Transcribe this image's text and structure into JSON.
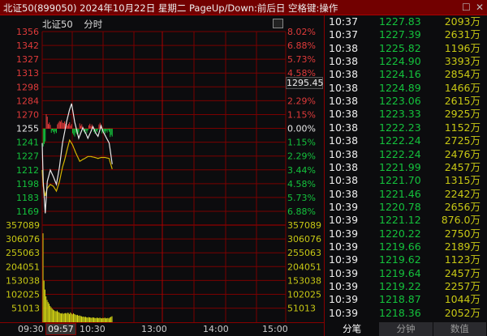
{
  "window": {
    "title": "北证50(899050) 2024年10月22日 星期二 PageUp/Down:前后日 空格键:操作",
    "restore_icon": "square-icon",
    "close_icon": "x-icon"
  },
  "chart_header": {
    "name": "北证50",
    "mode": "分时"
  },
  "current_price_tag": "1295.45",
  "colors": {
    "up": "#e03a3a",
    "down": "#14c23c",
    "avg": "#d4b400",
    "price": "#e8e8e8",
    "volume": "#d8d814",
    "grid": "#7a0000",
    "title_bg": "#720000"
  },
  "chart_data": {
    "type": "line",
    "price_axis": {
      "ticks": [
        "1356",
        "1342",
        "1327",
        "1313",
        "1298",
        "1284",
        "1270",
        "1255",
        "1241",
        "1227",
        "1212",
        "1198",
        "1183",
        "1169"
      ],
      "pct": [
        "8.02%",
        "6.88%",
        "5.73%",
        "4.58%",
        "",
        "2.29%",
        "1.15%",
        "0.00%",
        "1.15%",
        "2.29%",
        "3.44%",
        "4.58%",
        "5.73%",
        "6.88%"
      ],
      "ylim": [
        1169,
        1356
      ],
      "prev_close": 1255
    },
    "volume_axis": {
      "ticks": [
        "357089",
        "306076",
        "255063",
        "204051",
        "153038",
        "102025",
        "51013"
      ],
      "ylim": [
        0,
        357089
      ]
    },
    "time_axis": {
      "labels": [
        "09:30",
        "09:57",
        "10:30",
        "13:00",
        "14:00",
        "15:00"
      ],
      "highlighted": "09:57"
    },
    "price_series": {
      "minutes": [
        0,
        1,
        3,
        5,
        8,
        11,
        14,
        17,
        20,
        24,
        27,
        29,
        32,
        36,
        40,
        43,
        45,
        48,
        50,
        53,
        55,
        58,
        60,
        63,
        66,
        67,
        69
      ],
      "values": [
        1240,
        1200,
        1167,
        1200,
        1212,
        1205,
        1197,
        1215,
        1240,
        1262,
        1275,
        1281,
        1262,
        1245,
        1256,
        1250,
        1245,
        1252,
        1257,
        1250,
        1247,
        1258,
        1252,
        1246,
        1240,
        1233,
        1218
      ]
    },
    "avg_series": {
      "minutes": [
        0,
        1,
        3,
        5,
        8,
        11,
        14,
        17,
        20,
        22,
        25,
        27,
        30,
        33,
        37,
        40,
        42,
        45,
        48,
        52,
        55,
        58,
        62,
        66,
        67,
        69
      ],
      "values": [
        1212,
        1195,
        1185,
        1193,
        1197,
        1195,
        1190,
        1200,
        1215,
        1222,
        1235,
        1243,
        1238,
        1230,
        1221,
        1223,
        1224,
        1226,
        1226,
        1225,
        1224,
        1225,
        1225,
        1224,
        1220,
        1213
      ]
    },
    "volume": [
      327000,
      153000,
      120000,
      95000,
      82000,
      74000,
      68000,
      60000,
      55000,
      50000,
      46000,
      44000,
      41000,
      40000,
      43000,
      38000,
      36000,
      33000,
      32000,
      34000,
      31000,
      33000,
      34000,
      32000,
      35000,
      34000,
      30000,
      36000,
      32000,
      29000,
      33000,
      30000,
      28000,
      26000,
      27000,
      24000,
      25000,
      23000,
      22000,
      20000,
      21000,
      19000,
      20000,
      18000,
      17000,
      19000,
      18000,
      17000,
      16000,
      18000,
      17000,
      16000,
      15000,
      17000,
      16000,
      15000,
      17000,
      15000,
      14000,
      16000,
      15000,
      17000,
      14000,
      15000,
      16000,
      14000,
      18000,
      20000,
      22000
    ]
  },
  "ticks": [
    {
      "time": "10:37",
      "price": "1227.83",
      "amount": "2093万"
    },
    {
      "time": "10:37",
      "price": "1227.39",
      "amount": "2631万"
    },
    {
      "time": "10:38",
      "price": "1225.82",
      "amount": "1196万"
    },
    {
      "time": "10:38",
      "price": "1224.90",
      "amount": "3393万"
    },
    {
      "time": "10:38",
      "price": "1224.16",
      "amount": "2854万"
    },
    {
      "time": "10:38",
      "price": "1224.89",
      "amount": "1466万"
    },
    {
      "time": "10:38",
      "price": "1223.06",
      "amount": "2615万"
    },
    {
      "time": "10:38",
      "price": "1223.33",
      "amount": "2925万"
    },
    {
      "time": "10:38",
      "price": "1222.23",
      "amount": "1152万"
    },
    {
      "time": "10:38",
      "price": "1222.24",
      "amount": "2725万"
    },
    {
      "time": "10:38",
      "price": "1222.24",
      "amount": "2476万"
    },
    {
      "time": "10:38",
      "price": "1221.99",
      "amount": "2457万"
    },
    {
      "time": "10:38",
      "price": "1221.70",
      "amount": "1315万"
    },
    {
      "time": "10:38",
      "price": "1221.46",
      "amount": "2242万"
    },
    {
      "time": "10:39",
      "price": "1220.78",
      "amount": "2656万"
    },
    {
      "time": "10:39",
      "price": "1221.12",
      "amount": "876.0万"
    },
    {
      "time": "10:39",
      "price": "1220.22",
      "amount": "2750万"
    },
    {
      "time": "10:39",
      "price": "1219.66",
      "amount": "2189万"
    },
    {
      "time": "10:39",
      "price": "1219.62",
      "amount": "1123万"
    },
    {
      "time": "10:39",
      "price": "1219.64",
      "amount": "2457万"
    },
    {
      "time": "10:39",
      "price": "1219.22",
      "amount": "2257万"
    },
    {
      "time": "10:39",
      "price": "1218.87",
      "amount": "1044万"
    },
    {
      "time": "10:39",
      "price": "1218.36",
      "amount": "2052万"
    }
  ],
  "tabs": [
    "分笔",
    "分钟",
    "数值"
  ]
}
